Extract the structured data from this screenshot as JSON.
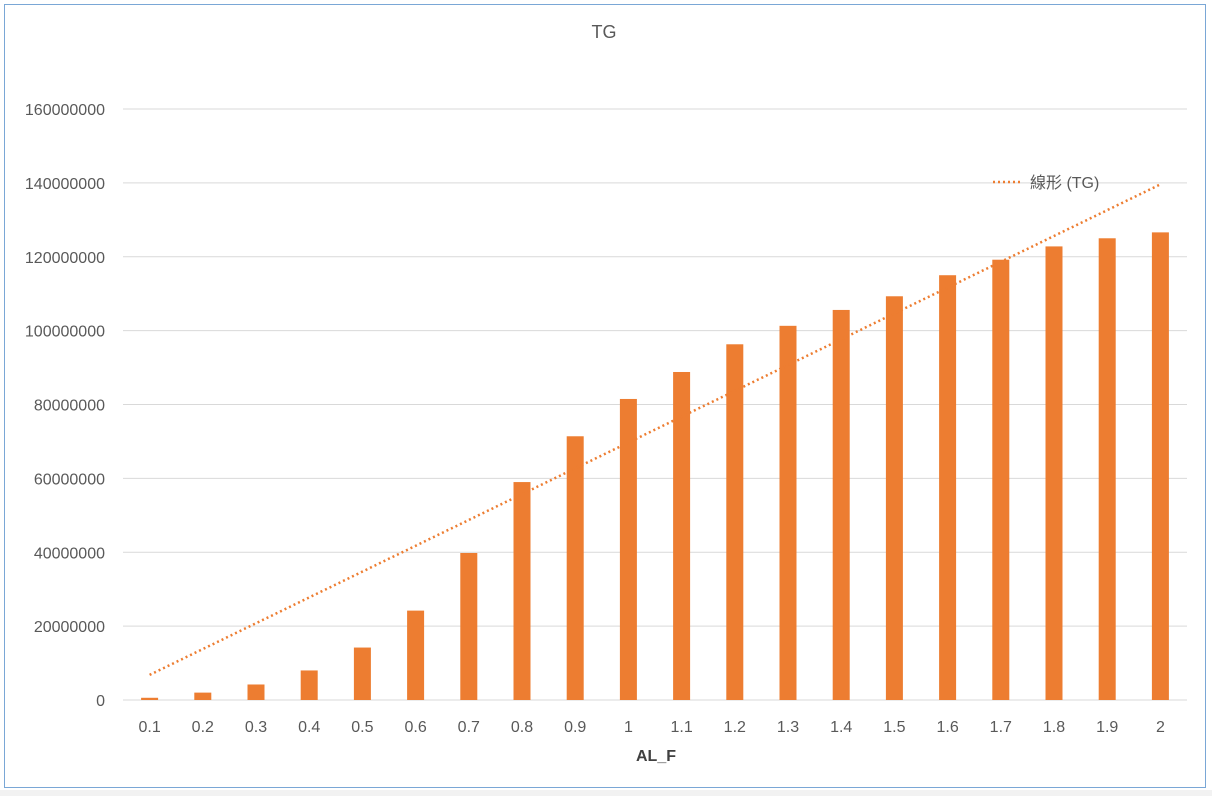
{
  "chart_data": {
    "type": "bar",
    "title": "TG",
    "xlabel": "AL_F",
    "ylabel": "",
    "categories": [
      "0.1",
      "0.2",
      "0.3",
      "0.4",
      "0.5",
      "0.6",
      "0.7",
      "0.8",
      "0.9",
      "1",
      "1.1",
      "1.2",
      "1.3",
      "1.4",
      "1.5",
      "1.6",
      "1.7",
      "1.8",
      "1.9",
      "2"
    ],
    "series": [
      {
        "name": "TG",
        "color": "#ed7d31",
        "values": [
          600000,
          2000000,
          4200000,
          8000000,
          14200000,
          24200000,
          39800000,
          59000000,
          71400000,
          81500000,
          88800000,
          96300000,
          101300000,
          105600000,
          109300000,
          115000000,
          119200000,
          122800000,
          125000000,
          126600000
        ]
      }
    ],
    "trendline": {
      "type": "linear",
      "label": "線形 (TG)",
      "color": "#ed7d31",
      "start": 6800000,
      "end": 139600000
    },
    "ylim": [
      0,
      160000000
    ],
    "yticks": [
      "0",
      "20000000",
      "40000000",
      "60000000",
      "80000000",
      "100000000",
      "120000000",
      "140000000",
      "160000000"
    ],
    "grid": true,
    "legend_position": "top-right"
  }
}
